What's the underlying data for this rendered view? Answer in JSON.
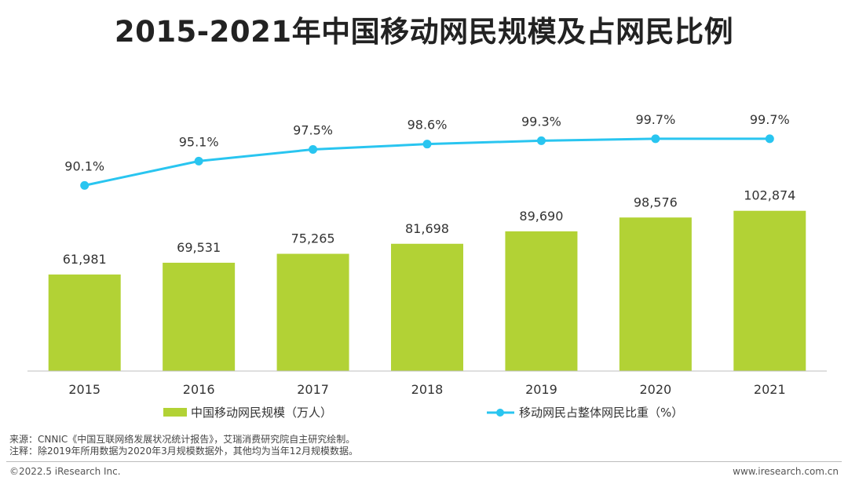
{
  "chart_data": {
    "type": "bar+line",
    "title": "2015-2021年中国移动网民规模及占网民比例",
    "categories": [
      "2015",
      "2016",
      "2017",
      "2018",
      "2019",
      "2020",
      "2021"
    ],
    "series": [
      {
        "name": "中国移动网民规模（万人）",
        "type": "bar",
        "values": [
          61981,
          69531,
          75265,
          81698,
          89690,
          98576,
          102874
        ],
        "labels": [
          "61,981",
          "69,531",
          "75,265",
          "81,698",
          "89,690",
          "98,576",
          "102,874"
        ]
      },
      {
        "name": "移动网民占整体网民比重（%）",
        "type": "line",
        "values": [
          90.1,
          95.1,
          97.5,
          98.6,
          99.3,
          99.7,
          99.7
        ],
        "labels": [
          "90.1%",
          "95.1%",
          "97.5%",
          "98.6%",
          "99.3%",
          "99.7%",
          "99.7%"
        ]
      }
    ],
    "bar_axis_range": [
      0,
      140000
    ],
    "line_axis_range": [
      60,
      100
    ],
    "legend_position": "bottom",
    "colors": {
      "bar": "#b2d235",
      "line": "#29c5f0",
      "axis": "#bfbfbf"
    }
  },
  "footer": {
    "source": "来源：CNNIC《中国互联网络发展状况统计报告》，艾瑞消费研究院自主研究绘制。",
    "note": "注释：除2019年所用数据为2020年3月规模数据外，其他均为当年12月规模数据。",
    "copyright": "©2022.5 iResearch Inc.",
    "website": "www.iresearch.com.cn"
  }
}
